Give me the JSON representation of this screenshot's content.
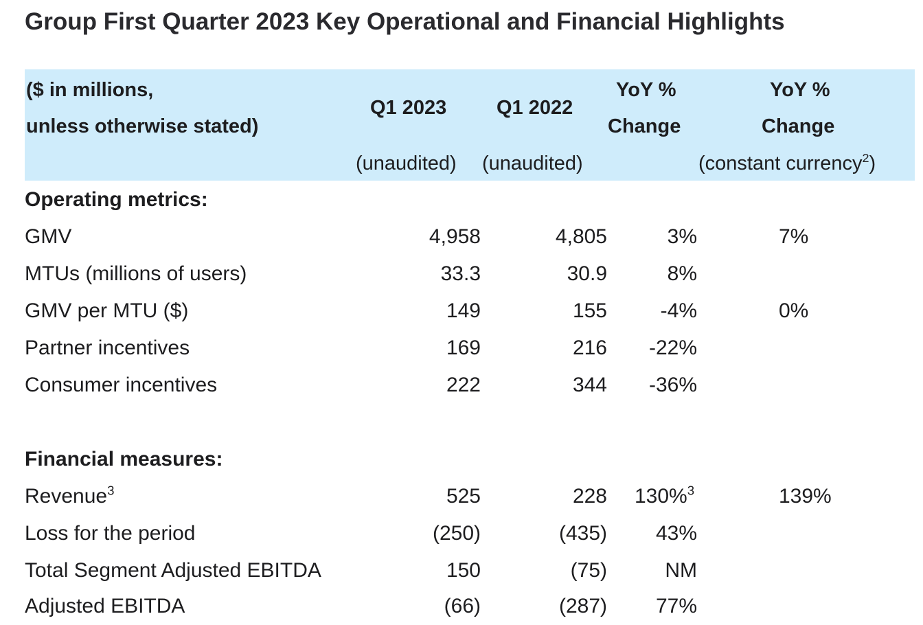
{
  "title": "Group First Quarter 2023 Key Operational and Financial Highlights",
  "header": {
    "col0_line1": "($ in millions,",
    "col0_line2": "unless otherwise stated)",
    "col1_label": "Q1 2023",
    "col1_sub": "(unaudited)",
    "col2_label": "Q1 2022",
    "col2_sub": "(unaudited)",
    "col3_line1": "YoY %",
    "col3_line2": "Change",
    "col4_line1": "YoY %",
    "col4_line2": "Change",
    "col4_sub": "(constant currency",
    "col4_sub_sup": "2",
    "col4_sub_close": ")"
  },
  "operating": {
    "heading": "Operating metrics:",
    "rows": [
      {
        "label": "GMV",
        "q1_2023": "4,958",
        "q1_2022": "4,805",
        "yoy": "3%",
        "yoy_cc": "7%"
      },
      {
        "label": "MTUs (millions of users)",
        "q1_2023": "33.3",
        "q1_2022": "30.9",
        "yoy": "8%",
        "yoy_cc": ""
      },
      {
        "label": "GMV per MTU ($)",
        "q1_2023": "149",
        "q1_2022": "155",
        "yoy": "-4%",
        "yoy_cc": "0%"
      },
      {
        "label": "Partner incentives",
        "q1_2023": "169",
        "q1_2022": "216",
        "yoy": "-22%",
        "yoy_cc": ""
      },
      {
        "label": "Consumer incentives",
        "q1_2023": "222",
        "q1_2022": "344",
        "yoy": "-36%",
        "yoy_cc": ""
      }
    ]
  },
  "financial": {
    "heading": "Financial measures:",
    "rows": [
      {
        "label": "Revenue",
        "label_sup": "3",
        "q1_2023": "525",
        "q1_2022": "228",
        "yoy": "130%",
        "yoy_sup": "3",
        "yoy_cc": "139%"
      },
      {
        "label": "Loss for the period",
        "q1_2023": "(250)",
        "q1_2022": "(435)",
        "yoy": "43%",
        "yoy_cc": ""
      },
      {
        "label": "Total Segment Adjusted EBITDA",
        "q1_2023": "150",
        "q1_2022": "(75)",
        "yoy": "NM",
        "yoy_cc": ""
      },
      {
        "label": "Adjusted EBITDA",
        "q1_2023": "(66)",
        "q1_2022": "(287)",
        "yoy": "77%",
        "yoy_cc": ""
      }
    ]
  },
  "colors": {
    "header_bg": "#cfecfb",
    "text": "#1d1d1f"
  }
}
